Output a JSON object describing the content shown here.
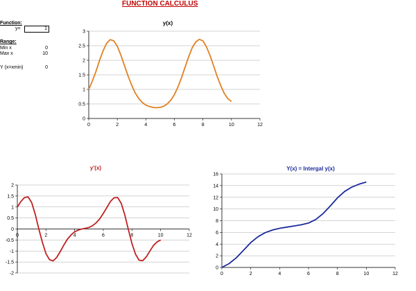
{
  "sheet_title": "FUNCTION CALCULUS",
  "panel": {
    "function_label": "Function:",
    "y_label": "y=",
    "y_value": "1",
    "range_label": "Range:",
    "min_label": "Min x",
    "min_value": "0",
    "max_label": "Max x",
    "max_value": "10",
    "yx_label": "Y (x=xmin)",
    "yx_value": "0"
  },
  "chart_data": [
    {
      "type": "line",
      "title": "y(x)",
      "xlim": [
        0,
        12
      ],
      "ylim": [
        0,
        3
      ],
      "x_ticks": [
        "0",
        "2",
        "4",
        "6",
        "8",
        "10",
        "12"
      ],
      "y_ticks": [
        "0",
        "0.5",
        "1",
        "1.5",
        "2",
        "2.5",
        "3"
      ],
      "grid": true,
      "color": "#e08020",
      "series": [
        {
          "x": [
            0,
            0.25,
            0.5,
            0.75,
            1,
            1.25,
            1.5,
            1.75,
            2,
            2.25,
            2.5,
            2.75,
            3,
            3.25,
            3.5,
            3.75,
            4,
            4.25,
            4.5,
            4.75,
            5,
            5.25,
            5.5,
            5.75,
            6,
            6.25,
            6.5,
            6.75,
            7,
            7.25,
            7.5,
            7.75,
            8,
            8.25,
            8.5,
            8.75,
            9,
            9.25,
            9.5,
            9.75,
            10
          ],
          "values": [
            1.0,
            1.28,
            1.61,
            1.98,
            2.32,
            2.58,
            2.71,
            2.67,
            2.48,
            2.18,
            1.82,
            1.47,
            1.15,
            0.88,
            0.69,
            0.55,
            0.46,
            0.41,
            0.38,
            0.37,
            0.38,
            0.42,
            0.5,
            0.63,
            0.82,
            1.08,
            1.4,
            1.76,
            2.12,
            2.43,
            2.63,
            2.72,
            2.67,
            2.46,
            2.16,
            1.81,
            1.44,
            1.13,
            0.86,
            0.68,
            0.58
          ]
        }
      ]
    },
    {
      "type": "line",
      "title": "y'(x)",
      "xlim": [
        0,
        12
      ],
      "ylim": [
        -2,
        2
      ],
      "x_ticks": [
        "0",
        "2",
        "4",
        "6",
        "8",
        "10",
        "12"
      ],
      "y_ticks": [
        "-2",
        "-1.5",
        "-1",
        "-0.5",
        "0",
        "0.5",
        "1",
        "1.5",
        "2"
      ],
      "grid": true,
      "color": "#c02020",
      "series": [
        {
          "x": [
            0,
            0.25,
            0.5,
            0.75,
            1,
            1.25,
            1.5,
            1.75,
            2,
            2.25,
            2.5,
            2.75,
            3,
            3.25,
            3.5,
            3.75,
            4,
            4.25,
            4.5,
            4.75,
            5,
            5.25,
            5.5,
            5.75,
            6,
            6.25,
            6.5,
            6.75,
            7,
            7.25,
            7.5,
            7.75,
            8,
            8.25,
            8.5,
            8.75,
            9,
            9.25,
            9.5,
            9.75,
            10
          ],
          "values": [
            1.0,
            1.25,
            1.43,
            1.46,
            1.2,
            0.67,
            0.0,
            -0.61,
            -1.12,
            -1.4,
            -1.45,
            -1.29,
            -1.02,
            -0.72,
            -0.46,
            -0.27,
            -0.13,
            -0.05,
            0.0,
            0.03,
            0.07,
            0.15,
            0.28,
            0.46,
            0.71,
            0.98,
            1.25,
            1.42,
            1.43,
            1.17,
            0.64,
            -0.03,
            -0.66,
            -1.15,
            -1.42,
            -1.44,
            -1.27,
            -1.0,
            -0.75,
            -0.59,
            -0.5
          ]
        }
      ]
    },
    {
      "type": "line",
      "title": "Y(x) = Intergal y(x)",
      "xlim": [
        0,
        12
      ],
      "ylim": [
        0,
        16
      ],
      "x_ticks": [
        "0",
        "2",
        "4",
        "6",
        "8",
        "10",
        "12"
      ],
      "y_ticks": [
        "0",
        "2",
        "4",
        "6",
        "8",
        "10",
        "12",
        "14",
        "16"
      ],
      "grid": true,
      "color": "#1a2a9a",
      "series": [
        {
          "x": [
            0,
            0.5,
            1,
            1.5,
            2,
            2.5,
            3,
            3.5,
            4,
            4.5,
            5,
            5.5,
            6,
            6.5,
            7,
            7.5,
            8,
            8.5,
            9,
            9.5,
            10
          ],
          "values": [
            0,
            0.65,
            1.65,
            2.95,
            4.25,
            5.25,
            5.95,
            6.4,
            6.7,
            6.9,
            7.1,
            7.3,
            7.6,
            8.2,
            9.2,
            10.5,
            11.9,
            13.0,
            13.75,
            14.25,
            14.6
          ]
        }
      ]
    }
  ]
}
